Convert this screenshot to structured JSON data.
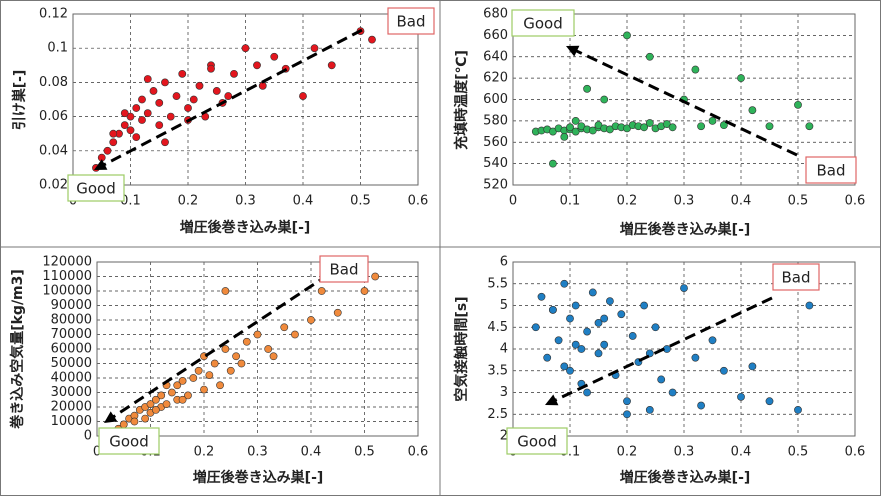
{
  "chart_data": [
    {
      "type": "scatter",
      "xlabel": "増圧後巻き込み巣[-]",
      "ylabel": "引け巣[-]",
      "color": "#e3161e",
      "xlim": [
        0,
        0.6
      ],
      "xticks": [
        0,
        0.1,
        0.2,
        0.3,
        0.4,
        0.5,
        0.6
      ],
      "ylim": [
        0.02,
        0.12
      ],
      "yticks": [
        0.02,
        0.04,
        0.06,
        0.08,
        0.1,
        0.12
      ],
      "grid": true,
      "annotations": [
        "Good",
        "Bad"
      ],
      "x": [
        0.04,
        0.05,
        0.06,
        0.07,
        0.08,
        0.09,
        0.1,
        0.1,
        0.11,
        0.12,
        0.12,
        0.13,
        0.14,
        0.15,
        0.15,
        0.16,
        0.17,
        0.18,
        0.19,
        0.2,
        0.21,
        0.22,
        0.23,
        0.24,
        0.25,
        0.26,
        0.27,
        0.28,
        0.3,
        0.32,
        0.33,
        0.35,
        0.37,
        0.4,
        0.42,
        0.45,
        0.5,
        0.52,
        0.07,
        0.09,
        0.11,
        0.13,
        0.16,
        0.2,
        0.24
      ],
      "values": [
        0.03,
        0.036,
        0.04,
        0.045,
        0.05,
        0.055,
        0.06,
        0.052,
        0.065,
        0.058,
        0.07,
        0.062,
        0.075,
        0.055,
        0.068,
        0.08,
        0.06,
        0.072,
        0.085,
        0.065,
        0.07,
        0.078,
        0.06,
        0.09,
        0.075,
        0.068,
        0.072,
        0.085,
        0.1,
        0.09,
        0.078,
        0.095,
        0.088,
        0.072,
        0.1,
        0.09,
        0.11,
        0.105,
        0.05,
        0.062,
        0.048,
        0.082,
        0.045,
        0.058,
        0.088
      ]
    },
    {
      "type": "scatter",
      "xlabel": "増圧後巻き込み巣[-]",
      "ylabel": "充填時温度[℃]",
      "color": "#2fb35a",
      "xlim": [
        0,
        0.6
      ],
      "xticks": [
        0,
        0.1,
        0.2,
        0.3,
        0.4,
        0.5,
        0.6
      ],
      "ylim": [
        520,
        680
      ],
      "yticks": [
        520,
        540,
        560,
        580,
        600,
        620,
        640,
        660,
        680
      ],
      "grid": true,
      "annotations": [
        "Good",
        "Bad"
      ],
      "x": [
        0.04,
        0.05,
        0.06,
        0.07,
        0.08,
        0.09,
        0.1,
        0.1,
        0.11,
        0.12,
        0.12,
        0.13,
        0.14,
        0.15,
        0.15,
        0.16,
        0.17,
        0.18,
        0.19,
        0.2,
        0.21,
        0.22,
        0.23,
        0.24,
        0.25,
        0.26,
        0.27,
        0.28,
        0.3,
        0.32,
        0.33,
        0.35,
        0.37,
        0.4,
        0.42,
        0.45,
        0.5,
        0.52,
        0.07,
        0.09,
        0.11,
        0.13,
        0.16,
        0.2,
        0.24
      ],
      "values": [
        570,
        571,
        572,
        570,
        573,
        571,
        572,
        574,
        570,
        573,
        575,
        572,
        571,
        574,
        576,
        573,
        572,
        575,
        574,
        573,
        576,
        575,
        574,
        578,
        573,
        575,
        577,
        574,
        600,
        628,
        575,
        580,
        576,
        620,
        590,
        575,
        595,
        575,
        540,
        565,
        580,
        610,
        600,
        660,
        640
      ]
    },
    {
      "type": "scatter",
      "xlabel": "増圧後巻き込み巣[-]",
      "ylabel": "巻き込み空気量[kg/m3]",
      "color": "#f08a3c",
      "xlim": [
        0,
        0.6
      ],
      "xticks": [
        0,
        0.1,
        0.2,
        0.3,
        0.4,
        0.5,
        0.6
      ],
      "ylim": [
        0,
        120000
      ],
      "yticks": [
        0,
        10000,
        20000,
        30000,
        40000,
        50000,
        60000,
        70000,
        80000,
        90000,
        100000,
        110000,
        120000
      ],
      "grid": true,
      "annotations": [
        "Good",
        "Bad"
      ],
      "x": [
        0.04,
        0.05,
        0.06,
        0.07,
        0.08,
        0.09,
        0.1,
        0.1,
        0.11,
        0.12,
        0.12,
        0.13,
        0.14,
        0.15,
        0.15,
        0.16,
        0.17,
        0.18,
        0.19,
        0.2,
        0.21,
        0.22,
        0.23,
        0.24,
        0.25,
        0.26,
        0.27,
        0.28,
        0.3,
        0.32,
        0.33,
        0.35,
        0.37,
        0.4,
        0.42,
        0.45,
        0.5,
        0.52,
        0.07,
        0.09,
        0.11,
        0.13,
        0.16,
        0.2,
        0.24
      ],
      "values": [
        5000,
        8000,
        12000,
        14000,
        18000,
        20000,
        22000,
        16000,
        25000,
        20000,
        28000,
        22000,
        30000,
        25000,
        35000,
        38000,
        28000,
        40000,
        45000,
        32000,
        42000,
        50000,
        35000,
        60000,
        45000,
        55000,
        50000,
        65000,
        70000,
        60000,
        55000,
        75000,
        70000,
        80000,
        100000,
        85000,
        100000,
        110000,
        10000,
        12000,
        18000,
        35000,
        25000,
        55000,
        100000
      ]
    },
    {
      "type": "scatter",
      "xlabel": "増圧後巻き込み巣[-]",
      "ylabel": "空気接触時間[s]",
      "color": "#1f7fc4",
      "xlim": [
        0,
        0.6
      ],
      "xticks": [
        0,
        0.1,
        0.2,
        0.3,
        0.4,
        0.5,
        0.6
      ],
      "ylim": [
        2,
        6
      ],
      "yticks": [
        2,
        2.5,
        3,
        3.5,
        4,
        4.5,
        5,
        5.5,
        6
      ],
      "grid": true,
      "annotations": [
        "Good",
        "Bad"
      ],
      "x": [
        0.04,
        0.05,
        0.06,
        0.07,
        0.08,
        0.09,
        0.1,
        0.1,
        0.11,
        0.12,
        0.12,
        0.13,
        0.14,
        0.15,
        0.15,
        0.16,
        0.17,
        0.18,
        0.19,
        0.2,
        0.21,
        0.22,
        0.23,
        0.24,
        0.25,
        0.26,
        0.27,
        0.28,
        0.3,
        0.32,
        0.33,
        0.35,
        0.37,
        0.4,
        0.42,
        0.45,
        0.5,
        0.52,
        0.07,
        0.09,
        0.11,
        0.13,
        0.16,
        0.2,
        0.24
      ],
      "values": [
        4.5,
        5.2,
        3.8,
        4.9,
        4.2,
        5.5,
        3.5,
        4.7,
        5.0,
        4.0,
        3.2,
        4.4,
        5.3,
        3.9,
        4.6,
        4.1,
        5.1,
        3.4,
        4.8,
        2.8,
        4.3,
        3.7,
        5.0,
        2.6,
        4.5,
        3.3,
        4.0,
        3.0,
        5.4,
        3.8,
        2.7,
        4.2,
        3.5,
        2.9,
        3.6,
        2.8,
        2.6,
        5.0,
        4.9,
        3.6,
        4.1,
        3.0,
        4.7,
        2.5,
        3.9
      ]
    }
  ]
}
